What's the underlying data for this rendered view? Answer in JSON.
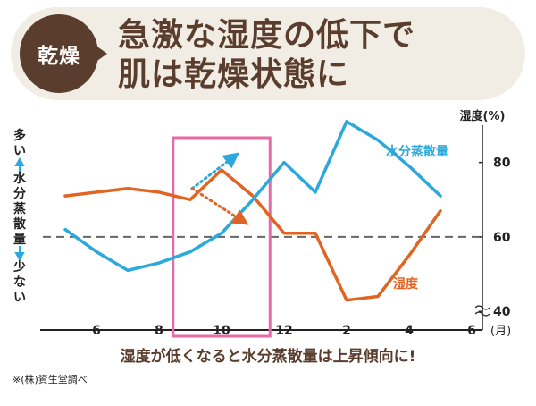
{
  "header": {
    "badge": "乾燥",
    "title_line1": "急激な湿度の低下で",
    "title_line2": "肌は乾燥状態に"
  },
  "caption": "湿度が低くなると水分蒸散量は上昇傾向に!",
  "footnote": "※(株)資生堂調べ",
  "colors": {
    "humidity": "#e06422",
    "water": "#2ca8dc",
    "highlight": "#e56aa6",
    "accent_brown": "#5a3d2c"
  },
  "chart_data": {
    "type": "line",
    "title": "",
    "xlabel": "(月)",
    "ylabel_right": "湿度(%)",
    "ylabel_left": {
      "top": "多い",
      "middle": "水分蒸散量",
      "bottom": "少ない"
    },
    "x_ticks": [
      "6",
      "8",
      "10",
      "12",
      "2",
      "4",
      "6"
    ],
    "y_ticks": [
      40,
      60,
      80
    ],
    "ylim": [
      35,
      90
    ],
    "reference_line": 60,
    "highlight_range": [
      "9",
      "11"
    ],
    "x_positions": [
      "5",
      "6",
      "7",
      "8",
      "9",
      "10",
      "11",
      "12",
      "1",
      "2",
      "3",
      "4",
      "5"
    ],
    "series": [
      {
        "name": "湿度",
        "color": "#e06422",
        "axis": "right",
        "values": [
          71,
          72,
          73,
          72,
          70,
          78,
          71,
          61,
          61,
          43,
          44,
          55,
          67
        ]
      },
      {
        "name": "水分蒸散量",
        "color": "#2ca8dc",
        "axis": "left-relative",
        "values": [
          62,
          56,
          51,
          53,
          56,
          61,
          70,
          80,
          72,
          91,
          86,
          79,
          71
        ]
      }
    ]
  }
}
